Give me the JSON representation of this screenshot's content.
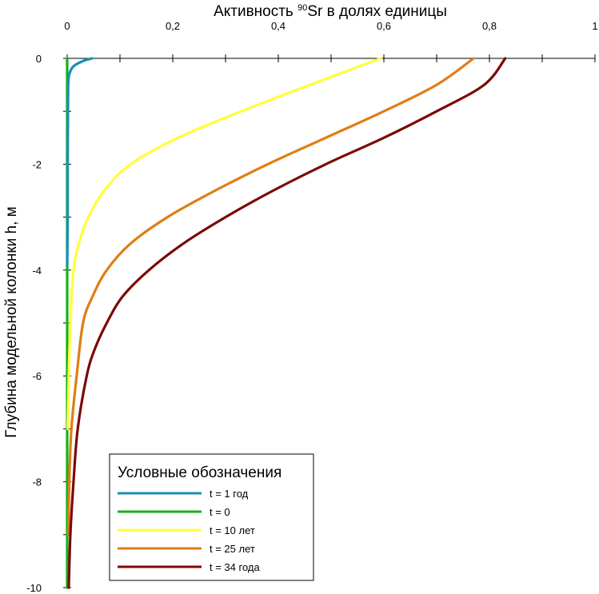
{
  "chart_data": {
    "type": "line",
    "title_parts": {
      "pre": "Активность ",
      "sup": "90",
      "post": "Sr в долях единицы"
    },
    "xlabel": "Активность 90Sr в долях единицы",
    "ylabel": "Глубина модельной колонки h, м",
    "xlim": [
      0,
      1
    ],
    "ylim": [
      -10,
      0
    ],
    "x_axis_position": "top",
    "x_ticks": [
      0,
      0.2,
      0.4,
      0.6,
      0.8,
      1
    ],
    "x_tick_labels": [
      "0",
      "0,2",
      "0,4",
      "0,6",
      "0,8",
      "1"
    ],
    "x_minor_step": 0.1,
    "y_ticks": [
      0,
      -2,
      -4,
      -6,
      -8,
      -10
    ],
    "y_tick_labels": [
      "0",
      "-2",
      "-4",
      "-6",
      "-8",
      "-10"
    ],
    "y_minor_step": 1,
    "grid": false,
    "legend": {
      "title": "Условные обозначения",
      "placement": "bottom-center"
    },
    "series": [
      {
        "name": "t = 1 год",
        "color": "#1a8fb5",
        "points": [
          [
            0.047,
            0
          ],
          [
            0.03,
            -0.05
          ],
          [
            0.012,
            -0.15
          ],
          [
            0.004,
            -0.3
          ],
          [
            0.002,
            -0.5
          ],
          [
            0.0015,
            -1
          ],
          [
            0.001,
            -2
          ],
          [
            0.001,
            -3
          ],
          [
            0,
            -3.9
          ]
        ]
      },
      {
        "name": "t = 0",
        "color": "#16b21a",
        "points": [
          [
            0,
            0
          ],
          [
            0,
            -10
          ]
        ]
      },
      {
        "name": "t = 10 лет",
        "color": "#ffff3a",
        "points": [
          [
            0.594,
            0
          ],
          [
            0.46,
            -0.5
          ],
          [
            0.33,
            -1
          ],
          [
            0.21,
            -1.5
          ],
          [
            0.12,
            -2
          ],
          [
            0.07,
            -2.5
          ],
          [
            0.04,
            -3
          ],
          [
            0.022,
            -3.5
          ],
          [
            0.012,
            -4
          ],
          [
            0.006,
            -5
          ],
          [
            0.003,
            -6
          ],
          [
            0.001,
            -7
          ]
        ]
      },
      {
        "name": "t = 25 лет",
        "color": "#e07d16",
        "points": [
          [
            0.77,
            0
          ],
          [
            0.7,
            -0.5
          ],
          [
            0.6,
            -1
          ],
          [
            0.49,
            -1.5
          ],
          [
            0.38,
            -2
          ],
          [
            0.28,
            -2.5
          ],
          [
            0.19,
            -3
          ],
          [
            0.12,
            -3.5
          ],
          [
            0.075,
            -4
          ],
          [
            0.048,
            -4.5
          ],
          [
            0.03,
            -5
          ],
          [
            0.018,
            -6
          ],
          [
            0.008,
            -7
          ],
          [
            0.004,
            -8
          ],
          [
            0.002,
            -9
          ]
        ]
      },
      {
        "name": "t = 34 года",
        "color": "#7b0a06",
        "points": [
          [
            0.83,
            0
          ],
          [
            0.79,
            -0.5
          ],
          [
            0.7,
            -1
          ],
          [
            0.6,
            -1.5
          ],
          [
            0.49,
            -2
          ],
          [
            0.39,
            -2.5
          ],
          [
            0.3,
            -3
          ],
          [
            0.22,
            -3.5
          ],
          [
            0.155,
            -4
          ],
          [
            0.105,
            -4.5
          ],
          [
            0.075,
            -5
          ],
          [
            0.052,
            -5.5
          ],
          [
            0.037,
            -6
          ],
          [
            0.02,
            -7
          ],
          [
            0.012,
            -8
          ],
          [
            0.006,
            -9
          ],
          [
            0.003,
            -10
          ]
        ]
      }
    ]
  }
}
